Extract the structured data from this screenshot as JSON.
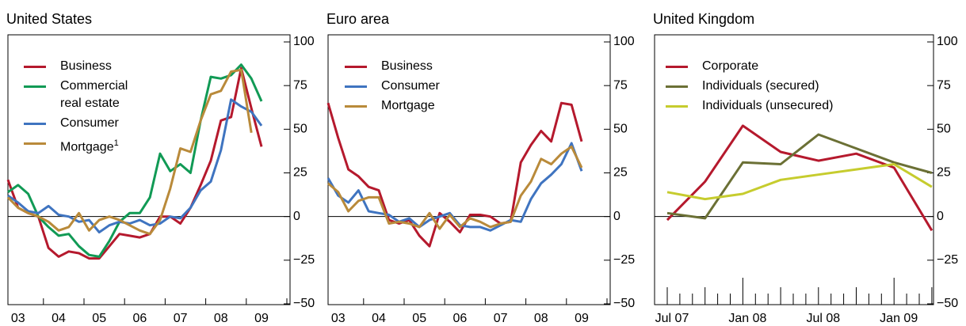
{
  "chart_data": [
    {
      "type": "line",
      "title": "United States",
      "categories": [
        null,
        "03",
        null,
        null,
        null,
        "04",
        null,
        null,
        null,
        "05",
        null,
        null,
        null,
        "06",
        null,
        null,
        null,
        "07",
        null,
        null,
        null,
        "08",
        null,
        null,
        null,
        "09"
      ],
      "series": [
        {
          "name": "Business",
          "color": "#b5192d",
          "values": [
            21,
            5,
            2,
            0,
            -18,
            -23,
            -20,
            -21,
            -24,
            -24,
            -17,
            -10,
            -11,
            -12,
            -10,
            0,
            0,
            -4,
            5,
            18,
            32,
            55,
            57,
            85,
            62,
            40
          ]
        },
        {
          "name": "Commercial real estate",
          "color": "#119a55",
          "values": [
            14,
            18,
            13,
            0,
            -6,
            -11,
            -10,
            -17,
            -22,
            -23,
            -14,
            -3,
            2,
            2,
            11,
            36,
            26,
            30,
            25,
            55,
            80,
            79,
            81,
            87,
            79,
            66
          ]
        },
        {
          "name": "Consumer",
          "color": "#3f74c0",
          "values": [
            12,
            8,
            3,
            2,
            6,
            1,
            0,
            -3,
            -2,
            -9,
            -5,
            -3,
            -4,
            -2,
            -5,
            -4,
            0,
            -1,
            5,
            15,
            20,
            38,
            67,
            63,
            60,
            52
          ]
        },
        {
          "name": "Mortgage",
          "footnote": "1",
          "color": "#b98a3a",
          "values": [
            11,
            5,
            2,
            0,
            -3,
            -8,
            -6,
            2,
            -8,
            -2,
            0,
            -2,
            -5,
            -8,
            -10,
            -2,
            16,
            39,
            37,
            55,
            70,
            72,
            83,
            84,
            48,
            null
          ]
        }
      ],
      "ylim": [
        -50,
        100
      ],
      "yticks": [
        {
          "value": -50,
          "label": "−50"
        },
        {
          "value": -25,
          "label": "−25"
        },
        0,
        25,
        50,
        75,
        100
      ]
    },
    {
      "type": "line",
      "title": "Euro area",
      "categories": [
        null,
        "03",
        null,
        null,
        null,
        "04",
        null,
        null,
        null,
        "05",
        null,
        null,
        null,
        "06",
        null,
        null,
        null,
        "07",
        null,
        null,
        null,
        "08",
        null,
        null,
        null,
        "09"
      ],
      "series": [
        {
          "name": "Business",
          "color": "#b5192d",
          "values": [
            65,
            45,
            27,
            23,
            17,
            15,
            -2,
            -4,
            -2,
            -11,
            -17,
            2,
            -3,
            -9,
            1,
            1,
            0,
            -4,
            -3,
            31,
            41,
            49,
            43,
            65,
            64,
            43
          ]
        },
        {
          "name": "Consumer",
          "color": "#3f74c0",
          "values": [
            22,
            12,
            8,
            15,
            3,
            2,
            1,
            -3,
            -1,
            -6,
            -2,
            0,
            2,
            -5,
            -6,
            -6,
            -8,
            -5,
            -2,
            -3,
            10,
            19,
            24,
            30,
            42,
            26
          ]
        },
        {
          "name": "Mortgage",
          "color": "#b98a3a",
          "values": [
            19,
            14,
            3,
            9,
            11,
            11,
            -4,
            -3,
            -4,
            -6,
            2,
            -7,
            1,
            -6,
            -1,
            -3,
            -6,
            -4,
            -3,
            12,
            20,
            33,
            30,
            36,
            40,
            28
          ]
        }
      ],
      "ylim": [
        -50,
        100
      ],
      "yticks": [
        {
          "value": -50,
          "label": "−50"
        },
        {
          "value": -25,
          "label": "−25"
        },
        0,
        25,
        50,
        75,
        100
      ]
    },
    {
      "type": "line",
      "title": "United Kingdom",
      "categories": [
        "Jul 07",
        null,
        "Jan 08",
        null,
        "Jul 08",
        null,
        "Jan 09",
        null
      ],
      "series": [
        {
          "name": "Corporate",
          "color": "#b5192d",
          "values": [
            -2,
            20,
            52,
            37,
            32,
            36,
            28,
            -8
          ]
        },
        {
          "name": "Individuals (secured)",
          "color": "#6b7035",
          "values": [
            2,
            -1,
            31,
            30,
            47,
            39,
            31,
            25
          ]
        },
        {
          "name": "Individuals (unsecured)",
          "color": "#c6cc2e",
          "values": [
            14,
            10,
            13,
            21,
            24,
            27,
            30,
            17
          ]
        }
      ],
      "ylim": [
        -50,
        100
      ],
      "yticks": [
        {
          "value": -50,
          "label": "−50"
        },
        {
          "value": -25,
          "label": "−25"
        },
        0,
        25,
        50,
        75,
        100
      ]
    }
  ]
}
